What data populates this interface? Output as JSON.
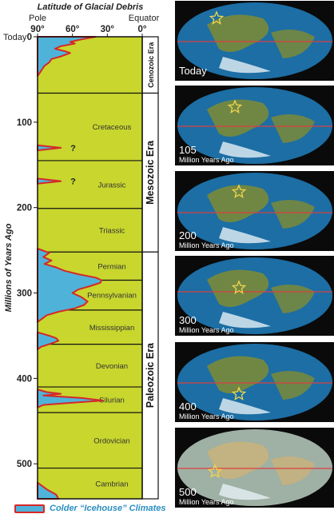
{
  "colors": {
    "panel_fill": "#c8d62e",
    "icehouse_fill": "#4fb3d9",
    "icehouse_border": "#d62828",
    "ocean": "#1c6ea4",
    "land": "#7a8a3a",
    "map_bg": "#0a0a0a",
    "equator_line": "#d94040",
    "star": "#f2d64b"
  },
  "chart_data": {
    "type": "area",
    "title": "Latitude of Glacial Debris",
    "ylabel": "Millions of Years Ago",
    "x_ticks": [
      "90°",
      "60°",
      "30°",
      "0°"
    ],
    "x_tick_values": [
      90,
      60,
      30,
      0
    ],
    "x_end_labels": {
      "left": "Pole",
      "right": "Equator"
    },
    "today_label": "Today",
    "y_ticks": [
      "0",
      "100",
      "200",
      "300",
      "400",
      "500"
    ],
    "y_tick_values": [
      0,
      100,
      200,
      300,
      400,
      500
    ],
    "xlim": [
      90,
      0
    ],
    "ylim": [
      0,
      541
    ],
    "periods": [
      {
        "name": "",
        "start": 0,
        "end": 66
      },
      {
        "name": "Cretaceous",
        "start": 66,
        "end": 145
      },
      {
        "name": "Jurassic",
        "start": 145,
        "end": 201
      },
      {
        "name": "Triassic",
        "start": 201,
        "end": 252
      },
      {
        "name": "Permian",
        "start": 252,
        "end": 285
      },
      {
        "name": "Pennsylvanian",
        "start": 285,
        "end": 320
      },
      {
        "name": "Mississippian",
        "start": 320,
        "end": 360
      },
      {
        "name": "Devonian",
        "start": 360,
        "end": 410
      },
      {
        "name": "Silurian",
        "start": 410,
        "end": 440
      },
      {
        "name": "Ordovician",
        "start": 440,
        "end": 505
      },
      {
        "name": "Cambrian",
        "start": 505,
        "end": 541
      }
    ],
    "eras": [
      {
        "name": "Cenozoic Era",
        "start": 0,
        "end": 66
      },
      {
        "name": "Mesozoic Era",
        "start": 66,
        "end": 252
      },
      {
        "name": "Paleozoic Era",
        "start": 252,
        "end": 541
      }
    ],
    "icehouse_episodes": [
      {
        "points": [
          [
            0,
            40
          ],
          [
            3,
            52
          ],
          [
            6,
            62
          ],
          [
            8,
            58
          ],
          [
            11,
            70
          ],
          [
            14,
            75
          ],
          [
            17,
            66
          ],
          [
            19,
            62
          ],
          [
            23,
            70
          ],
          [
            26,
            78
          ],
          [
            30,
            80
          ],
          [
            34,
            84
          ],
          [
            38,
            86
          ],
          [
            42,
            88
          ],
          [
            46,
            90
          ]
        ]
      },
      {
        "points": [
          [
            127,
            90
          ],
          [
            130,
            70
          ],
          [
            133,
            90
          ]
        ]
      },
      {
        "points": [
          [
            166,
            90
          ],
          [
            169,
            70
          ],
          [
            172,
            90
          ]
        ]
      },
      {
        "points": [
          [
            248,
            90
          ],
          [
            253,
            80
          ],
          [
            258,
            85
          ],
          [
            262,
            78
          ],
          [
            266,
            84
          ],
          [
            270,
            74
          ],
          [
            274,
            67
          ],
          [
            278,
            55
          ],
          [
            282,
            40
          ],
          [
            285,
            35
          ],
          [
            288,
            36
          ],
          [
            292,
            45
          ],
          [
            296,
            55
          ],
          [
            300,
            60
          ],
          [
            305,
            52
          ],
          [
            310,
            47
          ],
          [
            314,
            50
          ],
          [
            318,
            58
          ],
          [
            322,
            72
          ],
          [
            326,
            82
          ],
          [
            330,
            86
          ],
          [
            334,
            90
          ]
        ]
      },
      {
        "points": [
          [
            346,
            90
          ],
          [
            350,
            80
          ],
          [
            353,
            74
          ],
          [
            356,
            72
          ],
          [
            359,
            78
          ],
          [
            363,
            87
          ],
          [
            366,
            90
          ]
        ]
      },
      {
        "points": [
          [
            413,
            90
          ],
          [
            416,
            82
          ],
          [
            418,
            70
          ],
          [
            420,
            85
          ],
          [
            423,
            52
          ],
          [
            426,
            34
          ],
          [
            428,
            55
          ],
          [
            431,
            85
          ],
          [
            434,
            90
          ]
        ]
      },
      {
        "points": [
          [
            522,
            90
          ],
          [
            530,
            82
          ],
          [
            536,
            74
          ],
          [
            541,
            72
          ]
        ]
      }
    ],
    "uncertain_markers": [
      {
        "y": 130,
        "x": 70,
        "label": "?"
      },
      {
        "y": 169,
        "x": 70,
        "label": "?"
      }
    ],
    "legend": "Colder “Icehouse” Climates"
  },
  "maps": [
    {
      "line1": "Today",
      "line2": ""
    },
    {
      "line1": "105",
      "line2": "Million Years Ago"
    },
    {
      "line1": "200",
      "line2": "Million Years Ago"
    },
    {
      "line1": "300",
      "line2": "Million Years Ago"
    },
    {
      "line1": "400",
      "line2": "Million Years Ago"
    },
    {
      "line1": "500",
      "line2": "Million Years Ago"
    }
  ]
}
